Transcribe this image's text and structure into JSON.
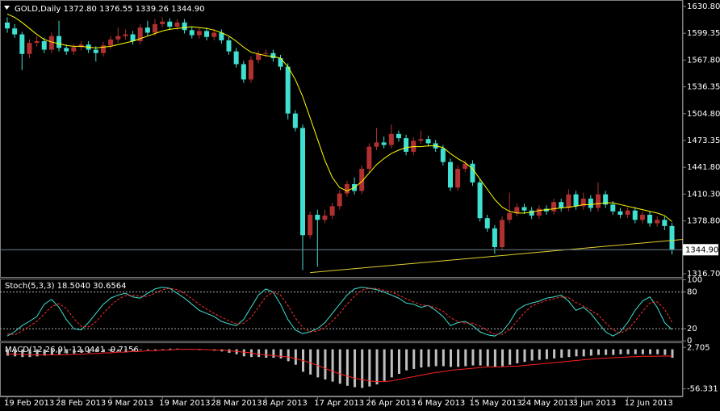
{
  "chart_data": [
    {
      "type": "candlestick",
      "title": "GOLD,Daily  1372.80 1376.55 1339.26 1344.90",
      "categories": [
        "19 Feb 2013",
        null,
        null,
        null,
        null,
        null,
        null,
        "28 Feb 2013",
        null,
        null,
        null,
        null,
        null,
        null,
        "9 Mar 2013",
        null,
        null,
        null,
        null,
        null,
        null,
        "19 Mar 2013",
        null,
        null,
        null,
        null,
        null,
        null,
        "28 Mar 2013",
        null,
        null,
        null,
        null,
        null,
        null,
        "8 Apr 2013",
        null,
        null,
        null,
        null,
        null,
        null,
        "17 Apr 2013",
        null,
        null,
        null,
        null,
        null,
        null,
        "26 Apr 2013",
        null,
        null,
        null,
        null,
        null,
        null,
        "6 May 2013",
        null,
        null,
        null,
        null,
        null,
        null,
        "15 May 2013",
        null,
        null,
        null,
        null,
        null,
        null,
        "24 May 2013",
        null,
        null,
        null,
        null,
        null,
        null,
        "3 Jun 2013",
        null,
        null,
        null,
        null,
        null,
        null,
        "12 Jun 2013",
        null,
        null,
        null,
        null,
        null,
        null
      ],
      "open": [
        1612,
        1605,
        1598,
        1575,
        1588,
        1590,
        1580,
        1596,
        1582,
        1578,
        1583,
        1586,
        1580,
        1576,
        1585,
        1592,
        1596,
        1598,
        1590,
        1606,
        1600,
        1610,
        1613,
        1607,
        1612,
        1603,
        1597,
        1602,
        1595,
        1600,
        1591,
        1578,
        1563,
        1545,
        1568,
        1575,
        1576,
        1570,
        1560,
        1505,
        1488,
        1362,
        1386,
        1380,
        1385,
        1396,
        1411,
        1422,
        1414,
        1440,
        1466,
        1471,
        1468,
        1481,
        1476,
        1460,
        1473,
        1475,
        1470,
        1464,
        1448,
        1418,
        1440,
        1446,
        1424,
        1382,
        1370,
        1348,
        1380,
        1388,
        1395,
        1391,
        1385,
        1393,
        1390,
        1401,
        1394,
        1410,
        1396,
        1405,
        1394,
        1410,
        1398,
        1390,
        1386,
        1391,
        1380,
        1386,
        1376,
        1380,
        1372.8
      ],
      "high": [
        1618,
        1610,
        1601,
        1592,
        1596,
        1594,
        1600,
        1614,
        1586,
        1587,
        1590,
        1590,
        1584,
        1589,
        1596,
        1606,
        1604,
        1602,
        1610,
        1614,
        1616,
        1618,
        1617,
        1616,
        1616,
        1607,
        1606,
        1606,
        1604,
        1604,
        1595,
        1582,
        1567,
        1572,
        1579,
        1580,
        1580,
        1574,
        1564,
        1509,
        1492,
        1390,
        1392,
        1392,
        1400,
        1415,
        1426,
        1430,
        1444,
        1470,
        1488,
        1478,
        1492,
        1485,
        1480,
        1477,
        1485,
        1479,
        1474,
        1468,
        1452,
        1444,
        1450,
        1450,
        1428,
        1386,
        1374,
        1384,
        1412,
        1399,
        1399,
        1395,
        1397,
        1397,
        1405,
        1405,
        1416,
        1414,
        1412,
        1409,
        1424,
        1414,
        1402,
        1394,
        1395,
        1395,
        1390,
        1390,
        1384,
        1384,
        1376.55
      ],
      "low": [
        1600,
        1594,
        1556,
        1570,
        1584,
        1576,
        1576,
        1578,
        1574,
        1574,
        1579,
        1576,
        1566,
        1572,
        1581,
        1588,
        1592,
        1586,
        1586,
        1596,
        1596,
        1606,
        1603,
        1603,
        1599,
        1593,
        1593,
        1591,
        1591,
        1587,
        1574,
        1559,
        1541,
        1541,
        1564,
        1571,
        1566,
        1556,
        1498,
        1484,
        1321,
        1358,
        1325,
        1376,
        1381,
        1392,
        1407,
        1410,
        1410,
        1436,
        1462,
        1464,
        1464,
        1472,
        1456,
        1456,
        1469,
        1466,
        1460,
        1444,
        1414,
        1414,
        1436,
        1420,
        1378,
        1366,
        1340,
        1344,
        1376,
        1384,
        1387,
        1381,
        1381,
        1386,
        1386,
        1390,
        1390,
        1392,
        1392,
        1390,
        1390,
        1394,
        1386,
        1382,
        1382,
        1376,
        1376,
        1372,
        1372,
        1368,
        1339.26
      ],
      "close": [
        1605,
        1598,
        1575,
        1588,
        1590,
        1580,
        1596,
        1582,
        1578,
        1583,
        1586,
        1580,
        1576,
        1585,
        1592,
        1596,
        1598,
        1590,
        1606,
        1600,
        1610,
        1613,
        1607,
        1612,
        1603,
        1597,
        1602,
        1595,
        1600,
        1591,
        1578,
        1563,
        1545,
        1568,
        1575,
        1576,
        1570,
        1560,
        1505,
        1488,
        1362,
        1386,
        1380,
        1385,
        1396,
        1411,
        1422,
        1414,
        1440,
        1466,
        1471,
        1468,
        1481,
        1476,
        1460,
        1473,
        1475,
        1470,
        1464,
        1448,
        1418,
        1440,
        1446,
        1424,
        1382,
        1370,
        1348,
        1380,
        1388,
        1395,
        1391,
        1385,
        1393,
        1390,
        1401,
        1394,
        1410,
        1396,
        1405,
        1394,
        1410,
        1398,
        1390,
        1386,
        1391,
        1380,
        1386,
        1376,
        1380,
        1372.8,
        1344.9
      ],
      "up_color": "#b03030",
      "down_color": "#40e0d0",
      "ma": {
        "color": "#ffff00",
        "values": [
          1622,
          1618,
          1612,
          1605,
          1598,
          1592,
          1589,
          1587,
          1585,
          1584,
          1584,
          1583,
          1582,
          1583,
          1584,
          1586,
          1588,
          1590,
          1593,
          1596,
          1599,
          1602,
          1604,
          1605,
          1606,
          1607,
          1606,
          1605,
          1603,
          1600,
          1596,
          1590,
          1583,
          1577,
          1575,
          1573,
          1572,
          1570,
          1560,
          1545,
          1525,
          1500,
          1475,
          1450,
          1430,
          1418,
          1414,
          1418,
          1425,
          1435,
          1445,
          1452,
          1458,
          1462,
          1465,
          1466,
          1466,
          1467,
          1467,
          1465,
          1458,
          1452,
          1447,
          1440,
          1428,
          1416,
          1404,
          1395,
          1390,
          1388,
          1388,
          1389,
          1391,
          1392,
          1393,
          1394,
          1395,
          1396,
          1398,
          1398,
          1399,
          1400,
          1400,
          1398,
          1396,
          1394,
          1392,
          1390,
          1388,
          1385,
          1378
        ]
      },
      "trendline": {
        "color": "#e0d030",
        "values": [
          1318,
          1357
        ]
      },
      "price_line": {
        "value": 1344.9,
        "label": "1344.90"
      },
      "ylim": [
        1312.9,
        1638.4
      ],
      "yticks": [
        {
          "value": 1630.8,
          "label": "1630.80"
        },
        {
          "value": 1599.35,
          "label": "1599.35"
        },
        {
          "value": 1567.8,
          "label": "1567.80"
        },
        {
          "value": 1536.35,
          "label": "1536.35"
        },
        {
          "value": 1504.8,
          "label": "1504.80"
        },
        {
          "value": 1473.35,
          "label": "1473.35"
        },
        {
          "value": 1441.8,
          "label": "1441.80"
        },
        {
          "value": 1410.3,
          "label": "1410.30"
        },
        {
          "value": 1378.8,
          "label": "1378.80"
        },
        {
          "value": 1316.7,
          "label": "1316.70"
        }
      ]
    },
    {
      "type": "line",
      "title": "Stoch(5,3,3) 18.5040 30.6564",
      "series": [
        {
          "color": "#40e0d0",
          "dashed": false,
          "values": [
            8,
            15,
            25,
            32,
            40,
            60,
            68,
            55,
            35,
            20,
            18,
            30,
            45,
            60,
            70,
            75,
            78,
            72,
            70,
            78,
            85,
            88,
            86,
            78,
            70,
            60,
            50,
            45,
            40,
            32,
            28,
            25,
            35,
            55,
            75,
            85,
            80,
            60,
            35,
            18,
            12,
            15,
            20,
            30,
            45,
            60,
            75,
            85,
            88,
            86,
            84,
            80,
            75,
            70,
            62,
            60,
            55,
            58,
            50,
            40,
            25,
            30,
            32,
            25,
            15,
            10,
            8,
            15,
            30,
            50,
            58,
            62,
            65,
            70,
            72,
            75,
            65,
            50,
            55,
            45,
            30,
            15,
            8,
            15,
            30,
            50,
            65,
            72,
            55,
            30,
            18.504
          ]
        },
        {
          "color": "#ff3030",
          "dashed": true,
          "values": [
            12,
            10,
            16,
            24,
            32,
            44,
            56,
            61,
            53,
            37,
            24,
            23,
            31,
            45,
            58,
            68,
            74,
            75,
            73,
            73,
            78,
            84,
            86,
            84,
            78,
            69,
            60,
            52,
            45,
            39,
            33,
            28,
            29,
            38,
            55,
            72,
            80,
            75,
            58,
            38,
            22,
            15,
            16,
            22,
            32,
            45,
            60,
            73,
            83,
            86,
            86,
            83,
            80,
            75,
            69,
            64,
            59,
            58,
            54,
            49,
            38,
            32,
            29,
            29,
            24,
            17,
            11,
            11,
            18,
            32,
            46,
            57,
            62,
            66,
            69,
            72,
            71,
            63,
            57,
            50,
            43,
            30,
            18,
            13,
            18,
            32,
            48,
            62,
            64,
            52,
            30.6564
          ]
        }
      ],
      "levels": [
        80,
        20
      ],
      "ylim": [
        -1,
        102
      ],
      "yticks": [
        100,
        80,
        20,
        0
      ]
    },
    {
      "type": "bar",
      "title": "MACD(12,26,9) -12.0441 -9.7156",
      "color": "#c0c0c0",
      "values": [
        -9,
        -10,
        -11,
        -11,
        -10,
        -9,
        -8,
        -7,
        -6,
        -6,
        -5,
        -5,
        -4,
        -4,
        -3,
        -3,
        -2,
        -2,
        -1,
        -1,
        -1,
        0.5,
        1,
        1,
        0.5,
        -0.5,
        -1,
        -1,
        -2,
        -3,
        -5,
        -7,
        -10,
        -11,
        -11,
        -12,
        -12,
        -13,
        -17,
        -22,
        -32,
        -36,
        -40,
        -43,
        -46,
        -49,
        -52,
        -54,
        -55,
        -53,
        -50,
        -45,
        -40,
        -35,
        -30,
        -28,
        -26,
        -25,
        -24,
        -24,
        -25,
        -25,
        -24,
        -23,
        -23,
        -24,
        -25,
        -24,
        -22,
        -20,
        -18,
        -16,
        -15,
        -14,
        -13,
        -12,
        -11,
        -10,
        -10,
        -9,
        -8,
        -8,
        -8,
        -7,
        -7,
        -7,
        -7,
        -7,
        -7,
        -8,
        -12.0441
      ],
      "series": [
        {
          "color": "#ff2020",
          "values": [
            -6,
            -7,
            -7,
            -8,
            -8,
            -8,
            -8,
            -8,
            -8,
            -7,
            -7,
            -6,
            -6,
            -5,
            -5,
            -4,
            -4,
            -3,
            -3,
            -2,
            -2,
            -1,
            -1,
            0,
            0,
            0,
            0,
            -0.5,
            -1,
            -1,
            -2,
            -3,
            -4,
            -5,
            -7,
            -8,
            -9,
            -10,
            -11,
            -13,
            -16,
            -19,
            -23,
            -27,
            -31,
            -35,
            -38,
            -41,
            -43,
            -45,
            -46,
            -46,
            -45,
            -43,
            -41,
            -39,
            -37,
            -35,
            -33,
            -32,
            -30,
            -29,
            -28,
            -27,
            -26,
            -25,
            -25,
            -25,
            -24,
            -24,
            -23,
            -22,
            -21,
            -20,
            -19,
            -18,
            -17,
            -16,
            -15,
            -14,
            -13,
            -12.5,
            -12,
            -11.5,
            -11,
            -10.5,
            -10,
            -10,
            -9.8,
            -9.7,
            -9.7156
          ]
        }
      ],
      "ylim": [
        -67.2,
        9.9
      ],
      "yticks": [
        2.705,
        -56.331
      ]
    }
  ]
}
